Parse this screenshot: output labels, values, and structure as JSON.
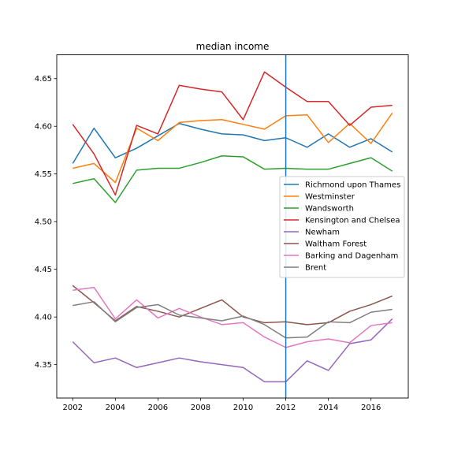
{
  "chart_data": {
    "type": "line",
    "title": "median income",
    "xlabel": "",
    "ylabel": "",
    "xlim": [
      2001.25,
      2017.75
    ],
    "ylim": [
      4.315,
      4.675
    ],
    "xticks": [
      2002,
      2004,
      2006,
      2008,
      2010,
      2012,
      2014,
      2016
    ],
    "yticks": [
      4.35,
      4.4,
      4.45,
      4.5,
      4.55,
      4.6,
      4.65
    ],
    "ytick_labels": [
      "4.35",
      "4.40",
      "4.45",
      "4.50",
      "4.55",
      "4.60",
      "4.65"
    ],
    "grid": false,
    "legend_position": "center-right",
    "vline": {
      "x": 2012,
      "color": "#1f77b4"
    },
    "x": [
      2002,
      2003,
      2004,
      2005,
      2006,
      2007,
      2008,
      2009,
      2010,
      2011,
      2012,
      2013,
      2014,
      2015,
      2016,
      2017
    ],
    "series": [
      {
        "name": "Richmond upon Thames",
        "color": "#1f77b4",
        "values": [
          4.561,
          4.598,
          4.567,
          4.577,
          4.59,
          4.603,
          4.597,
          4.592,
          4.591,
          4.585,
          4.588,
          4.578,
          4.592,
          4.578,
          4.587,
          4.573
        ]
      },
      {
        "name": "Westminster",
        "color": "#ff7f0e",
        "values": [
          4.556,
          4.561,
          4.541,
          4.598,
          4.585,
          4.604,
          4.606,
          4.607,
          4.602,
          4.597,
          4.611,
          4.612,
          4.583,
          4.603,
          4.582,
          4.614
        ]
      },
      {
        "name": "Wandsworth",
        "color": "#2ca02c",
        "values": [
          4.54,
          4.545,
          4.52,
          4.554,
          4.556,
          4.556,
          4.562,
          4.569,
          4.568,
          4.555,
          4.556,
          4.555,
          4.555,
          4.561,
          4.567,
          4.553
        ]
      },
      {
        "name": "Kensington and Chelsea",
        "color": "#d62728",
        "values": [
          4.602,
          4.571,
          4.528,
          4.601,
          4.592,
          4.643,
          4.639,
          4.636,
          4.607,
          4.657,
          4.641,
          4.626,
          4.626,
          4.601,
          4.62,
          4.622
        ]
      },
      {
        "name": "Newham",
        "color": "#9467bd",
        "values": [
          4.374,
          4.352,
          4.357,
          4.347,
          4.352,
          4.357,
          4.353,
          4.35,
          4.347,
          4.332,
          4.332,
          4.354,
          4.344,
          4.372,
          4.376,
          4.398
        ]
      },
      {
        "name": "Waltham Forest",
        "color": "#8c564b",
        "values": [
          4.433,
          4.415,
          4.396,
          4.411,
          4.406,
          4.4,
          4.409,
          4.418,
          4.4,
          4.394,
          4.395,
          4.392,
          4.394,
          4.406,
          4.413,
          4.422
        ]
      },
      {
        "name": "Barking and Dagenham",
        "color": "#e377c2",
        "values": [
          4.428,
          4.431,
          4.398,
          4.418,
          4.399,
          4.409,
          4.4,
          4.392,
          4.394,
          4.379,
          4.368,
          4.374,
          4.377,
          4.373,
          4.391,
          4.394
        ]
      },
      {
        "name": "Brent",
        "color": "#7f7f7f",
        "values": [
          4.412,
          4.416,
          4.395,
          4.41,
          4.413,
          4.402,
          4.399,
          4.396,
          4.401,
          4.392,
          4.378,
          4.379,
          4.395,
          4.394,
          4.405,
          4.408
        ]
      }
    ]
  }
}
